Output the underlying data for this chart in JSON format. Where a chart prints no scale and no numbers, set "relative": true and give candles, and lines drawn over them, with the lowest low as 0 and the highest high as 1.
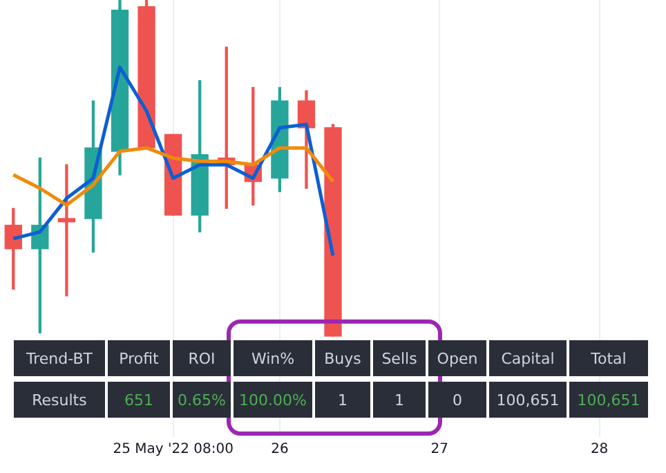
{
  "chart_data": {
    "type": "candlestick",
    "relative": true,
    "categories": [
      null,
      null,
      null,
      null,
      null,
      null,
      "25 May '22 08:00",
      null,
      null,
      null,
      "26",
      null,
      null,
      null,
      null,
      null,
      "27",
      null,
      null,
      null,
      null,
      null,
      "28",
      null,
      null
    ],
    "ohlc": [
      [
        0.33,
        0.38,
        0.14,
        0.26
      ],
      [
        0.26,
        0.53,
        0.01,
        0.33
      ],
      [
        0.35,
        0.51,
        0.12,
        0.34
      ],
      [
        0.35,
        0.7,
        0.25,
        0.56
      ],
      [
        0.55,
        1,
        0.48,
        0.97
      ],
      [
        0.98,
        1,
        0.56,
        0.56
      ],
      [
        0.6,
        0.6,
        0.36,
        0.36
      ],
      [
        0.36,
        0.76,
        0.31,
        0.54
      ],
      [
        0.53,
        0.86,
        0.38,
        0.51
      ],
      [
        0.51,
        0.74,
        0.39,
        0.46
      ],
      [
        0.47,
        0.74,
        0.43,
        0.7
      ],
      [
        0.7,
        0.73,
        0.44,
        0.62
      ],
      [
        0.62,
        0.63,
        0,
        0
      ],
      null,
      null,
      null,
      null,
      null,
      null,
      null,
      null,
      null,
      null,
      null,
      null
    ],
    "colors": [
      "#ef5350",
      "#26a69a",
      "#ef5350",
      "#26a69a",
      "#26a69a",
      "#ef5350",
      "#ef5350",
      "#26a69a",
      "#ef5350",
      "#ef5350",
      "#26a69a",
      "#ef5350",
      "#ef5350",
      null,
      null,
      null,
      null,
      null,
      null,
      null,
      null,
      null,
      null,
      null,
      null
    ],
    "series": [
      {
        "type": "line",
        "color": "#0d5fd3",
        "values": [
          0.29,
          0.31,
          0.41,
          0.47,
          0.8,
          0.67,
          0.47,
          0.51,
          0.51,
          0.47,
          0.62,
          0.63,
          0.24,
          null,
          null,
          null,
          null,
          null,
          null,
          null,
          null,
          null,
          null,
          null,
          null
        ]
      },
      {
        "type": "line",
        "color": "#f08a0c",
        "values": [
          0.48,
          0.44,
          0.39,
          0.45,
          0.55,
          0.56,
          0.53,
          0.52,
          0.52,
          0.51,
          0.56,
          0.56,
          0.46,
          null,
          null,
          null,
          null,
          null,
          null,
          null,
          null,
          null,
          null,
          null,
          null
        ]
      }
    ],
    "grid": "x",
    "marker": "none",
    "legend": false,
    "annotations": [
      "Trend-BT",
      "Profit",
      "ROI",
      "Win%",
      "Buys",
      "Sells",
      "Open",
      "Capital",
      "Total",
      "Results",
      "651",
      "0.65%",
      "100.00%",
      "1",
      "1",
      "0",
      "100,651",
      "100,651"
    ]
  }
}
